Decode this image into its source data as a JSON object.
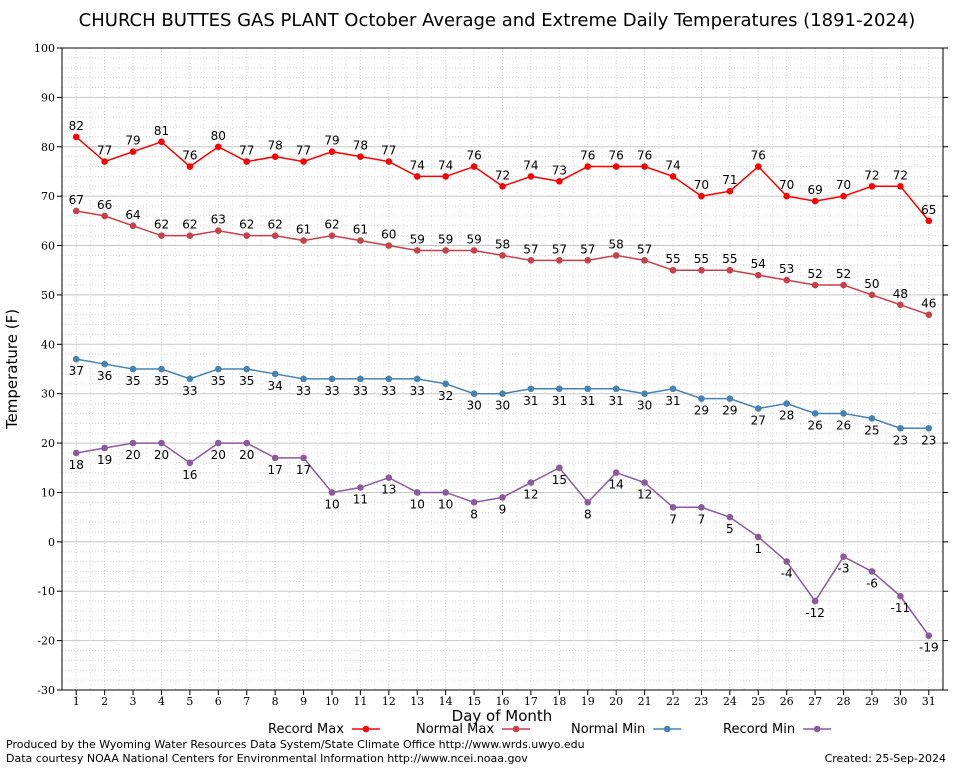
{
  "chart_data": {
    "type": "line",
    "title": "CHURCH BUTTES GAS PLANT October Average and Extreme Daily Temperatures (1891-2024)",
    "xlabel": "Day of Month",
    "ylabel": "Temperature (F)",
    "ylim": [
      -30,
      100
    ],
    "xlim": [
      0.5,
      31.5
    ],
    "y_ticks": [
      "-30",
      "-20",
      "-10",
      "0",
      "10",
      "20",
      "30",
      "40",
      "50",
      "60",
      "70",
      "80",
      "90",
      "100"
    ],
    "x": [
      "1",
      "2",
      "3",
      "4",
      "5",
      "6",
      "7",
      "8",
      "9",
      "10",
      "11",
      "12",
      "13",
      "14",
      "15",
      "16",
      "17",
      "18",
      "19",
      "20",
      "21",
      "22",
      "23",
      "24",
      "25",
      "26",
      "27",
      "28",
      "29",
      "30",
      "31"
    ],
    "grid": true,
    "legend_position": "bottom",
    "series": [
      {
        "name": "Record Max",
        "color": "#ff0000",
        "label_pos": "above",
        "values": [
          82,
          77,
          79,
          81,
          76,
          80,
          77,
          78,
          77,
          79,
          78,
          77,
          74,
          74,
          76,
          72,
          74,
          73,
          76,
          76,
          76,
          74,
          70,
          71,
          76,
          70,
          69,
          70,
          72,
          72,
          65
        ]
      },
      {
        "name": "Normal Max",
        "color": "#c8404a",
        "label_pos": "above",
        "values": [
          67,
          66,
          64,
          62,
          62,
          63,
          62,
          62,
          61,
          62,
          61,
          60,
          59,
          59,
          59,
          58,
          57,
          57,
          57,
          58,
          57,
          55,
          55,
          55,
          54,
          53,
          52,
          52,
          50,
          48,
          46
        ]
      },
      {
        "name": "Normal Min",
        "color": "#4682b4",
        "label_pos": "below",
        "values": [
          37,
          36,
          35,
          35,
          33,
          35,
          35,
          34,
          33,
          33,
          33,
          33,
          33,
          32,
          30,
          30,
          31,
          31,
          31,
          31,
          30,
          31,
          29,
          29,
          27,
          28,
          26,
          26,
          25,
          23,
          23
        ]
      },
      {
        "name": "Record Min",
        "color": "#8b5a9e",
        "label_pos": "below",
        "values": [
          18,
          19,
          20,
          20,
          16,
          20,
          20,
          17,
          17,
          10,
          11,
          13,
          10,
          10,
          8,
          9,
          12,
          15,
          8,
          14,
          12,
          7,
          7,
          5,
          1,
          -4,
          -12,
          -3,
          -6,
          -11,
          -19
        ]
      }
    ]
  },
  "footer": {
    "line1": "Produced by the Wyoming Water Resources Data System/State Climate Office http://www.wrds.uwyo.edu",
    "line2": "Data courtesy NOAA National Centers for Environmental Information http://www.ncei.noaa.gov",
    "created": "Created:  25-Sep-2024"
  }
}
